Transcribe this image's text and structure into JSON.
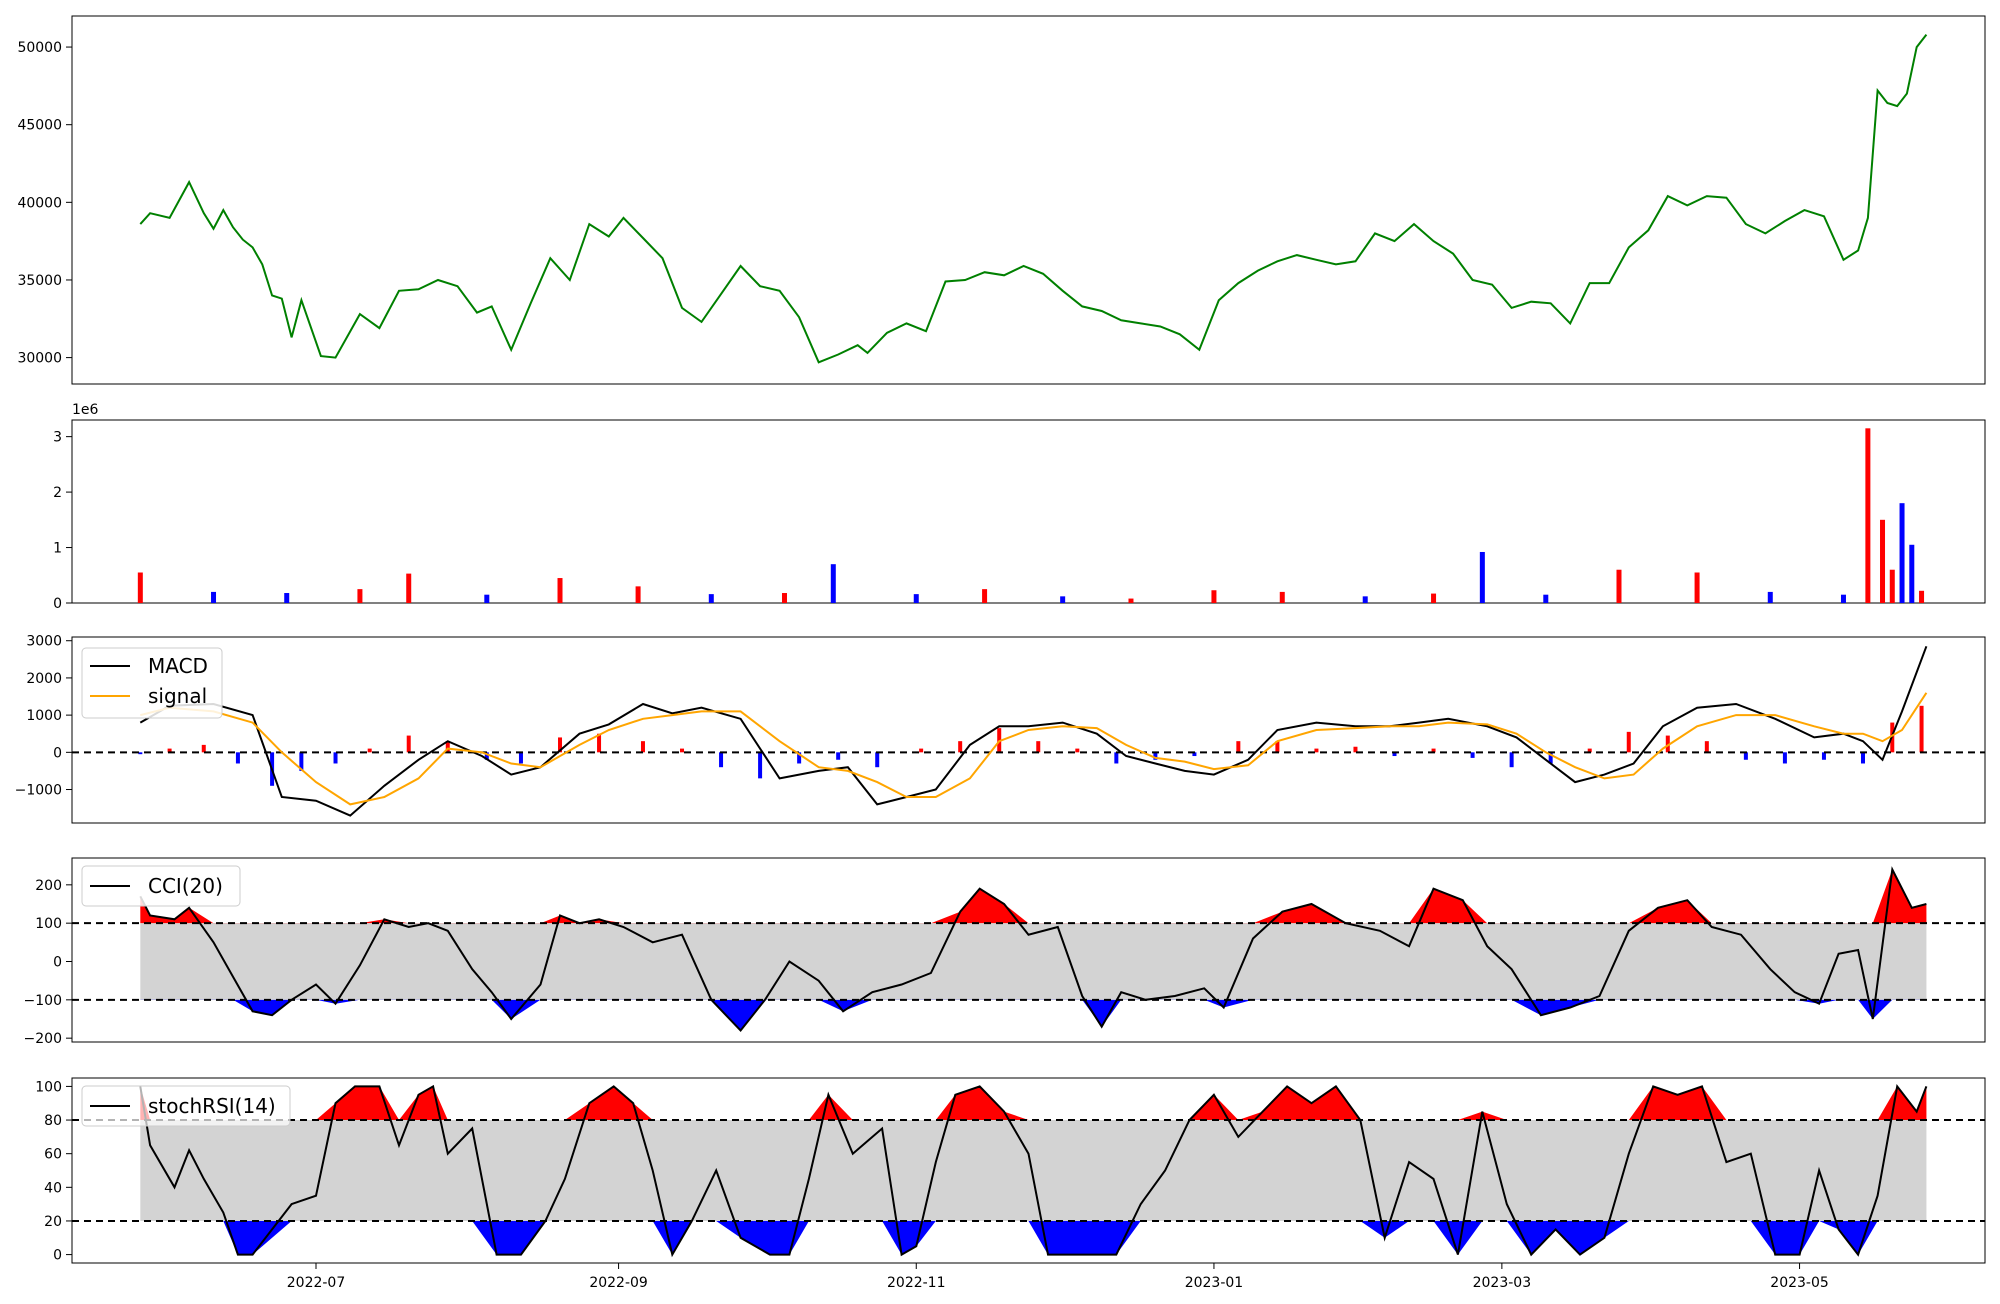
{
  "chart_data": [
    {
      "panel": "price",
      "type": "line",
      "ylim": [
        28300,
        52000
      ],
      "yticks": [
        "30000",
        "35000",
        "40000",
        "45000",
        "50000"
      ],
      "color": "#008000",
      "x": [
        "2022-05-26",
        "2022-05-28",
        "2022-06-01",
        "2022-06-05",
        "2022-06-08",
        "2022-06-10",
        "2022-06-12",
        "2022-06-14",
        "2022-06-16",
        "2022-06-18",
        "2022-06-20",
        "2022-06-22",
        "2022-06-24",
        "2022-06-26",
        "2022-06-28",
        "2022-07-02",
        "2022-07-05",
        "2022-07-10",
        "2022-07-14",
        "2022-07-18",
        "2022-07-22",
        "2022-07-26",
        "2022-07-30",
        "2022-08-03",
        "2022-08-06",
        "2022-08-10",
        "2022-08-14",
        "2022-08-18",
        "2022-08-22",
        "2022-08-26",
        "2022-08-30",
        "2022-09-02",
        "2022-09-06",
        "2022-09-10",
        "2022-09-14",
        "2022-09-18",
        "2022-09-22",
        "2022-09-26",
        "2022-09-30",
        "2022-10-04",
        "2022-10-08",
        "2022-10-12",
        "2022-10-16",
        "2022-10-20",
        "2022-10-22",
        "2022-10-26",
        "2022-10-30",
        "2022-11-03",
        "2022-11-07",
        "2022-11-11",
        "2022-11-15",
        "2022-11-19",
        "2022-11-23",
        "2022-11-27",
        "2022-12-01",
        "2022-12-05",
        "2022-12-09",
        "2022-12-13",
        "2022-12-17",
        "2022-12-21",
        "2022-12-25",
        "2022-12-29",
        "2023-01-02",
        "2023-01-06",
        "2023-01-10",
        "2023-01-14",
        "2023-01-18",
        "2023-01-22",
        "2023-01-26",
        "2023-01-30",
        "2023-02-03",
        "2023-02-07",
        "2023-02-11",
        "2023-02-15",
        "2023-02-19",
        "2023-02-23",
        "2023-02-27",
        "2023-03-03",
        "2023-03-07",
        "2023-03-11",
        "2023-03-15",
        "2023-03-19",
        "2023-03-23",
        "2023-03-27",
        "2023-03-31",
        "2023-04-04",
        "2023-04-08",
        "2023-04-12",
        "2023-04-16",
        "2023-04-20",
        "2023-04-24",
        "2023-04-28",
        "2023-05-02",
        "2023-05-06",
        "2023-05-10",
        "2023-05-13",
        "2023-05-15",
        "2023-05-17",
        "2023-05-19",
        "2023-05-21",
        "2023-05-23",
        "2023-05-25",
        "2023-05-27"
      ],
      "values": [
        38600,
        39300,
        39000,
        41300,
        39300,
        38300,
        39500,
        38400,
        37600,
        37100,
        36000,
        34000,
        33800,
        31300,
        33700,
        30100,
        30000,
        32800,
        31900,
        34300,
        34400,
        35000,
        34600,
        32900,
        33300,
        30500,
        33500,
        36400,
        35000,
        38600,
        37800,
        39000,
        37700,
        36400,
        33200,
        32300,
        34100,
        35900,
        34600,
        34300,
        32600,
        29700,
        30200,
        30800,
        30300,
        31600,
        32200,
        31700,
        34900,
        35000,
        35500,
        35300,
        35900,
        35400,
        34300,
        33300,
        33000,
        32400,
        32200,
        32000,
        31500,
        30500,
        33700,
        34800,
        35600,
        36200,
        36600,
        36300,
        36000,
        36200,
        38000,
        37500,
        38600,
        37500,
        36700,
        35000,
        34700,
        33200,
        33600,
        33500,
        32200,
        34800,
        34800,
        37100,
        38200,
        40400,
        39800,
        40400,
        40300,
        38600,
        38000,
        38800,
        39500,
        39100,
        36300,
        36900,
        39000,
        47200,
        46400,
        46200,
        47000,
        50000,
        50800
      ]
    },
    {
      "panel": "volume",
      "type": "bar",
      "ylim": [
        0,
        3300000
      ],
      "yticks": [
        "0",
        "1",
        "2",
        "3"
      ],
      "offset_label": "1e6",
      "colors": {
        "up": "#ff0000",
        "down": "#0000ff"
      },
      "x": [
        "2022-05-26",
        "2022-06-10",
        "2022-06-25",
        "2022-07-10",
        "2022-07-20",
        "2022-08-05",
        "2022-08-20",
        "2022-09-05",
        "2022-09-20",
        "2022-10-05",
        "2022-10-15",
        "2022-11-01",
        "2022-11-15",
        "2022-12-01",
        "2022-12-15",
        "2023-01-01",
        "2023-01-15",
        "2023-02-01",
        "2023-02-15",
        "2023-02-25",
        "2023-03-10",
        "2023-03-25",
        "2023-04-10",
        "2023-04-25",
        "2023-05-10",
        "2023-05-15",
        "2023-05-18",
        "2023-05-20",
        "2023-05-22",
        "2023-05-24",
        "2023-05-26"
      ],
      "values": [
        550000,
        200000,
        180000,
        250000,
        530000,
        150000,
        450000,
        300000,
        160000,
        180000,
        700000,
        160000,
        250000,
        120000,
        80000,
        230000,
        200000,
        120000,
        170000,
        920000,
        150000,
        600000,
        550000,
        200000,
        150000,
        3150000,
        1500000,
        600000,
        1800000,
        1050000,
        220000
      ],
      "directions": [
        "up",
        "down",
        "down",
        "up",
        "up",
        "down",
        "up",
        "up",
        "down",
        "up",
        "down",
        "down",
        "up",
        "down",
        "up",
        "up",
        "up",
        "down",
        "up",
        "down",
        "down",
        "up",
        "up",
        "down",
        "down",
        "up",
        "up",
        "up",
        "down",
        "down",
        "up"
      ]
    },
    {
      "panel": "macd",
      "type": "line",
      "ylim": [
        -1900,
        3100
      ],
      "yticks": [
        "−1000",
        "0",
        "1000",
        "2000",
        "3000"
      ],
      "legend": "top-left",
      "zero_line": true,
      "x": [
        "2022-05-26",
        "2022-06-01",
        "2022-06-10",
        "2022-06-18",
        "2022-06-24",
        "2022-07-01",
        "2022-07-08",
        "2022-07-15",
        "2022-07-22",
        "2022-07-28",
        "2022-08-04",
        "2022-08-10",
        "2022-08-16",
        "2022-08-24",
        "2022-08-30",
        "2022-09-06",
        "2022-09-12",
        "2022-09-18",
        "2022-09-26",
        "2022-10-04",
        "2022-10-12",
        "2022-10-18",
        "2022-10-24",
        "2022-10-30",
        "2022-11-05",
        "2022-11-12",
        "2022-11-18",
        "2022-11-24",
        "2022-12-01",
        "2022-12-08",
        "2022-12-14",
        "2022-12-20",
        "2022-12-26",
        "2023-01-01",
        "2023-01-08",
        "2023-01-14",
        "2023-01-22",
        "2023-01-30",
        "2023-02-06",
        "2023-02-12",
        "2023-02-18",
        "2023-02-26",
        "2023-03-04",
        "2023-03-10",
        "2023-03-16",
        "2023-03-22",
        "2023-03-28",
        "2023-04-03",
        "2023-04-10",
        "2023-04-18",
        "2023-04-26",
        "2023-05-04",
        "2023-05-10",
        "2023-05-14",
        "2023-05-18",
        "2023-05-22",
        "2023-05-27"
      ],
      "series": [
        {
          "name": "MACD",
          "color": "#000000",
          "values": [
            800,
            1250,
            1300,
            1000,
            -1200,
            -1300,
            -1700,
            -900,
            -200,
            300,
            -100,
            -600,
            -400,
            500,
            750,
            1300,
            1050,
            1200,
            900,
            -700,
            -500,
            -400,
            -1400,
            -1200,
            -1000,
            200,
            700,
            700,
            800,
            500,
            -100,
            -300,
            -500,
            -600,
            -200,
            600,
            800,
            700,
            700,
            800,
            900,
            700,
            400,
            -200,
            -800,
            -600,
            -300,
            700,
            1200,
            1300,
            900,
            400,
            500,
            300,
            -200,
            1100,
            2850
          ]
        },
        {
          "name": "signal",
          "color": "#ffa500",
          "values": [
            1000,
            1200,
            1100,
            800,
            0,
            -800,
            -1400,
            -1200,
            -700,
            100,
            0,
            -300,
            -400,
            200,
            600,
            900,
            1000,
            1100,
            1100,
            300,
            -400,
            -500,
            -800,
            -1200,
            -1200,
            -700,
            300,
            600,
            700,
            650,
            200,
            -150,
            -250,
            -450,
            -350,
            300,
            600,
            650,
            700,
            700,
            800,
            750,
            500,
            0,
            -400,
            -700,
            -600,
            100,
            700,
            1000,
            1000,
            700,
            500,
            500,
            300,
            600,
            1600
          ]
        }
      ],
      "histogram": {
        "x": [
          "2022-05-26",
          "2022-06-01",
          "2022-06-08",
          "2022-06-15",
          "2022-06-22",
          "2022-06-28",
          "2022-07-05",
          "2022-07-12",
          "2022-07-20",
          "2022-07-28",
          "2022-08-05",
          "2022-08-12",
          "2022-08-20",
          "2022-08-28",
          "2022-09-06",
          "2022-09-14",
          "2022-09-22",
          "2022-09-30",
          "2022-10-08",
          "2022-10-16",
          "2022-10-24",
          "2022-11-02",
          "2022-11-10",
          "2022-11-18",
          "2022-11-26",
          "2022-12-04",
          "2022-12-12",
          "2022-12-20",
          "2022-12-28",
          "2023-01-06",
          "2023-01-14",
          "2023-01-22",
          "2023-01-30",
          "2023-02-07",
          "2023-02-15",
          "2023-02-23",
          "2023-03-03",
          "2023-03-11",
          "2023-03-19",
          "2023-03-27",
          "2023-04-04",
          "2023-04-12",
          "2023-04-20",
          "2023-04-28",
          "2023-05-06",
          "2023-05-14",
          "2023-05-20",
          "2023-05-26"
        ],
        "values": [
          -50,
          100,
          200,
          -300,
          -900,
          -500,
          -300,
          100,
          450,
          300,
          -200,
          -300,
          400,
          500,
          300,
          100,
          -400,
          -700,
          -300,
          -200,
          -400,
          100,
          300,
          650,
          300,
          100,
          -300,
          -200,
          -100,
          300,
          300,
          100,
          150,
          -100,
          100,
          -150,
          -400,
          -300,
          100,
          550,
          450,
          300,
          -200,
          -300,
          -200,
          -300,
          800,
          1250
        ]
      }
    },
    {
      "panel": "cci",
      "type": "line",
      "ylim": [
        -210,
        270
      ],
      "yticks": [
        "−200",
        "−100",
        "0",
        "100",
        "200"
      ],
      "thresholds": [
        100,
        -100
      ],
      "legend": "top-left",
      "colors": {
        "line": "#000000",
        "band": "#d3d3d3",
        "above": "#ff0000",
        "below": "#0000ff"
      },
      "x": [
        "2022-05-26",
        "2022-05-28",
        "2022-06-02",
        "2022-06-05",
        "2022-06-10",
        "2022-06-14",
        "2022-06-18",
        "2022-06-22",
        "2022-06-26",
        "2022-07-01",
        "2022-07-05",
        "2022-07-10",
        "2022-07-15",
        "2022-07-20",
        "2022-07-24",
        "2022-07-28",
        "2022-08-02",
        "2022-08-06",
        "2022-08-10",
        "2022-08-16",
        "2022-08-20",
        "2022-08-24",
        "2022-08-28",
        "2022-09-02",
        "2022-09-08",
        "2022-09-14",
        "2022-09-20",
        "2022-09-26",
        "2022-10-01",
        "2022-10-06",
        "2022-10-12",
        "2022-10-17",
        "2022-10-23",
        "2022-10-29",
        "2022-11-04",
        "2022-11-10",
        "2022-11-14",
        "2022-11-19",
        "2022-11-24",
        "2022-11-30",
        "2022-12-05",
        "2022-12-09",
        "2022-12-13",
        "2022-12-18",
        "2022-12-24",
        "2022-12-30",
        "2023-01-03",
        "2023-01-09",
        "2023-01-15",
        "2023-01-21",
        "2023-01-28",
        "2023-02-04",
        "2023-02-10",
        "2023-02-15",
        "2023-02-21",
        "2023-02-26",
        "2023-03-03",
        "2023-03-09",
        "2023-03-15",
        "2023-03-21",
        "2023-03-27",
        "2023-04-02",
        "2023-04-08",
        "2023-04-13",
        "2023-04-19",
        "2023-04-25",
        "2023-04-30",
        "2023-05-05",
        "2023-05-09",
        "2023-05-13",
        "2023-05-16",
        "2023-05-20",
        "2023-05-24",
        "2023-05-27"
      ],
      "values": [
        170,
        120,
        110,
        140,
        50,
        -40,
        -130,
        -140,
        -100,
        -60,
        -110,
        -10,
        110,
        90,
        100,
        80,
        -20,
        -80,
        -150,
        -60,
        120,
        100,
        110,
        90,
        50,
        70,
        -100,
        -180,
        -100,
        0,
        -50,
        -130,
        -80,
        -60,
        -30,
        130,
        190,
        150,
        70,
        90,
        -90,
        -170,
        -80,
        -100,
        -90,
        -70,
        -120,
        60,
        130,
        150,
        100,
        80,
        40,
        190,
        160,
        40,
        -20,
        -140,
        -120,
        -90,
        80,
        140,
        160,
        90,
        70,
        -20,
        -80,
        -110,
        20,
        30,
        -150,
        240,
        140,
        150
      ]
    },
    {
      "panel": "stochrsi",
      "type": "line",
      "ylim": [
        -5,
        105
      ],
      "yticks": [
        "0",
        "20",
        "40",
        "60",
        "80",
        "100"
      ],
      "thresholds": [
        80,
        20
      ],
      "legend": "top-left",
      "colors": {
        "line": "#000000",
        "band": "#d3d3d3",
        "above": "#ff0000",
        "below": "#0000ff"
      },
      "xticks": [
        "2022-07",
        "2022-09",
        "2022-11",
        "2023-01",
        "2023-03",
        "2023-05"
      ],
      "x": [
        "2022-05-26",
        "2022-05-28",
        "2022-06-02",
        "2022-06-05",
        "2022-06-08",
        "2022-06-12",
        "2022-06-15",
        "2022-06-18",
        "2022-06-26",
        "2022-07-01",
        "2022-07-05",
        "2022-07-09",
        "2022-07-14",
        "2022-07-18",
        "2022-07-22",
        "2022-07-25",
        "2022-07-28",
        "2022-08-02",
        "2022-08-07",
        "2022-08-12",
        "2022-08-17",
        "2022-08-21",
        "2022-08-26",
        "2022-08-31",
        "2022-09-04",
        "2022-09-08",
        "2022-09-12",
        "2022-09-16",
        "2022-09-21",
        "2022-09-26",
        "2022-10-02",
        "2022-10-06",
        "2022-10-10",
        "2022-10-14",
        "2022-10-19",
        "2022-10-25",
        "2022-10-29",
        "2022-11-01",
        "2022-11-05",
        "2022-11-09",
        "2022-11-14",
        "2022-11-19",
        "2022-11-24",
        "2022-11-28",
        "2022-12-02",
        "2022-12-07",
        "2022-12-12",
        "2022-12-17",
        "2022-12-22",
        "2022-12-27",
        "2023-01-01",
        "2023-01-06",
        "2023-01-11",
        "2023-01-16",
        "2023-01-21",
        "2023-01-26",
        "2023-01-31",
        "2023-02-05",
        "2023-02-10",
        "2023-02-15",
        "2023-02-20",
        "2023-02-25",
        "2023-03-02",
        "2023-03-07",
        "2023-03-12",
        "2023-03-17",
        "2023-03-22",
        "2023-03-27",
        "2023-04-01",
        "2023-04-06",
        "2023-04-11",
        "2023-04-16",
        "2023-04-21",
        "2023-04-26",
        "2023-05-01",
        "2023-05-05",
        "2023-05-09",
        "2023-05-13",
        "2023-05-17",
        "2023-05-21",
        "2023-05-25",
        "2023-05-27"
      ],
      "values": [
        100,
        65,
        40,
        62,
        45,
        25,
        0,
        0,
        30,
        35,
        90,
        100,
        100,
        65,
        95,
        100,
        60,
        75,
        0,
        0,
        20,
        45,
        90,
        100,
        90,
        50,
        0,
        20,
        50,
        10,
        0,
        0,
        45,
        95,
        60,
        75,
        0,
        5,
        55,
        95,
        100,
        85,
        60,
        0,
        0,
        0,
        0,
        30,
        50,
        80,
        95,
        70,
        85,
        100,
        90,
        100,
        80,
        10,
        55,
        45,
        0,
        85,
        30,
        0,
        15,
        0,
        10,
        60,
        100,
        95,
        100,
        55,
        60,
        0,
        0,
        50,
        15,
        0,
        35,
        100,
        85,
        100
      ]
    }
  ],
  "legends": {
    "macd": {
      "macd_label": "MACD",
      "signal_label": "signal"
    },
    "cci": {
      "label": "CCI(20)"
    },
    "stochrsi": {
      "label": "stochRSI(14)"
    }
  }
}
